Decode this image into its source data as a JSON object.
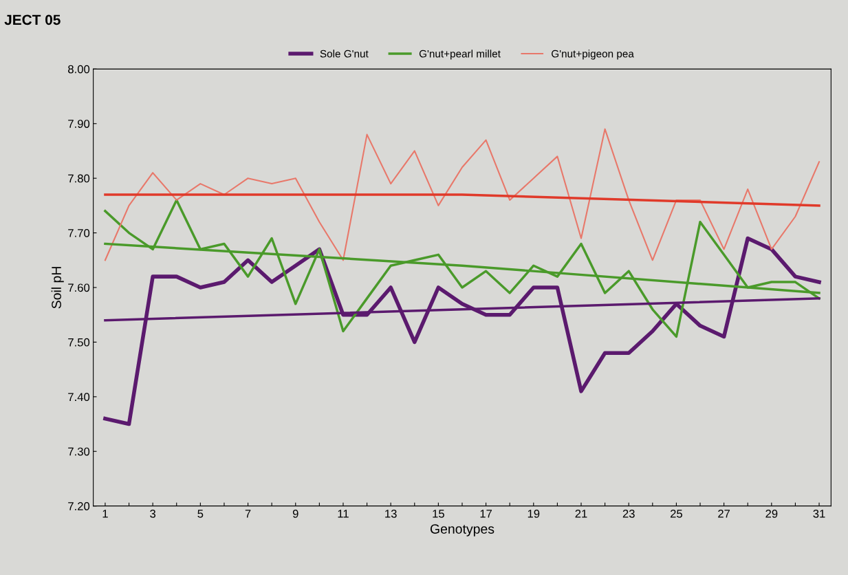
{
  "chart_data": {
    "type": "line",
    "xlabel": "Genotypes",
    "ylabel": "Soil pH",
    "annotations": [
      "JECT 05"
    ],
    "x": [
      1,
      2,
      3,
      4,
      5,
      6,
      7,
      8,
      9,
      10,
      11,
      12,
      13,
      14,
      15,
      16,
      17,
      18,
      19,
      20,
      21,
      22,
      23,
      24,
      25,
      26,
      27,
      28,
      29,
      30,
      31
    ],
    "series": [
      {
        "name": "Sole G'nut",
        "color": "#5b1a6e",
        "values": [
          7.36,
          7.35,
          7.62,
          7.62,
          7.6,
          7.61,
          7.65,
          7.61,
          7.64,
          7.67,
          7.55,
          7.55,
          7.6,
          7.5,
          7.6,
          7.57,
          7.55,
          7.55,
          7.6,
          7.6,
          7.41,
          7.48,
          7.48,
          7.52,
          7.57,
          7.53,
          7.51,
          7.69,
          7.67,
          7.62,
          7.61
        ]
      },
      {
        "name": "G'nut+pearl millet",
        "color": "#4a9a2a",
        "values": [
          7.74,
          7.7,
          7.67,
          7.76,
          7.67,
          7.68,
          7.62,
          7.69,
          7.57,
          7.67,
          7.52,
          7.58,
          7.64,
          7.65,
          7.66,
          7.6,
          7.63,
          7.59,
          7.64,
          7.62,
          7.68,
          7.59,
          7.63,
          7.56,
          7.51,
          7.72,
          7.66,
          7.6,
          7.61,
          7.61,
          7.58
        ]
      },
      {
        "name": "G'nut+pigeon pea",
        "color": "#e8786a",
        "values": [
          7.65,
          7.75,
          7.81,
          7.76,
          7.79,
          7.77,
          7.8,
          7.79,
          7.8,
          7.72,
          7.65,
          7.88,
          7.79,
          7.85,
          7.75,
          7.82,
          7.87,
          7.76,
          7.8,
          7.84,
          7.69,
          7.89,
          7.76,
          7.65,
          7.76,
          7.76,
          7.67,
          7.78,
          7.67,
          7.73,
          7.83
        ]
      },
      {
        "color": "#5b1a6e",
        "x": [
          1,
          16,
          31
        ],
        "values": [
          7.54,
          7.56,
          7.58
        ]
      },
      {
        "color": "#4a9a2a",
        "x": [
          1,
          16,
          31
        ],
        "values": [
          7.68,
          7.64,
          7.59
        ]
      },
      {
        "color": "#e03a2a",
        "x": [
          1,
          16,
          31
        ],
        "values": [
          7.77,
          7.77,
          7.75
        ]
      }
    ],
    "xlim": [
      0.5,
      31.5
    ],
    "xticks": [
      1,
      {
        "value": 2,
        "label": null
      },
      3,
      {
        "value": 4,
        "label": null
      },
      5,
      {
        "value": 6,
        "label": null
      },
      7,
      {
        "value": 8,
        "label": null
      },
      9,
      {
        "value": 10,
        "label": null
      },
      11,
      {
        "value": 12,
        "label": null
      },
      13,
      {
        "value": 14,
        "label": null
      },
      15,
      {
        "value": 16,
        "label": null
      },
      17,
      {
        "value": 18,
        "label": null
      },
      19,
      {
        "value": 20,
        "label": null
      },
      21,
      {
        "value": 22,
        "label": null
      },
      23,
      {
        "value": 24,
        "label": null
      },
      25,
      {
        "value": 26,
        "label": null
      },
      27,
      {
        "value": 28,
        "label": null
      },
      29,
      {
        "value": 30,
        "label": null
      },
      31
    ],
    "ylim": [
      7.2,
      8.0
    ],
    "yticks": [
      {
        "value": 7.2,
        "label": "7.20"
      },
      {
        "value": 7.3,
        "label": "7.30"
      },
      {
        "value": 7.4,
        "label": "7.40"
      },
      {
        "value": 7.5,
        "label": "7.50"
      },
      {
        "value": 7.6,
        "label": "7.60"
      },
      {
        "value": 7.7,
        "label": "7.70"
      },
      {
        "value": 7.8,
        "label": "7.80"
      },
      {
        "value": 7.9,
        "label": "7.90"
      },
      {
        "value": 8.0,
        "label": "8.00"
      }
    ],
    "grid": false,
    "legend": "top",
    "marker": "none",
    "line_style": "solid"
  }
}
